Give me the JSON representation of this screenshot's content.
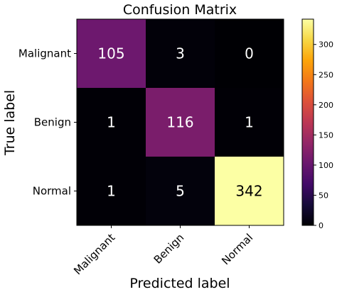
{
  "chart_data": {
    "type": "heatmap",
    "title": "Confusion Matrix",
    "xlabel": "Predicted label",
    "ylabel": "True label",
    "x_categories": [
      "Malignant",
      "Benign",
      "Normal"
    ],
    "y_categories": [
      "Malignant",
      "Benign",
      "Normal"
    ],
    "values": [
      [
        105,
        3,
        0
      ],
      [
        1,
        116,
        1
      ],
      [
        1,
        5,
        342
      ]
    ],
    "colormap": "inferno",
    "colorbar": {
      "range": [
        0,
        342
      ],
      "ticks": [
        0,
        50,
        100,
        150,
        200,
        250,
        300
      ]
    },
    "grid": false
  }
}
